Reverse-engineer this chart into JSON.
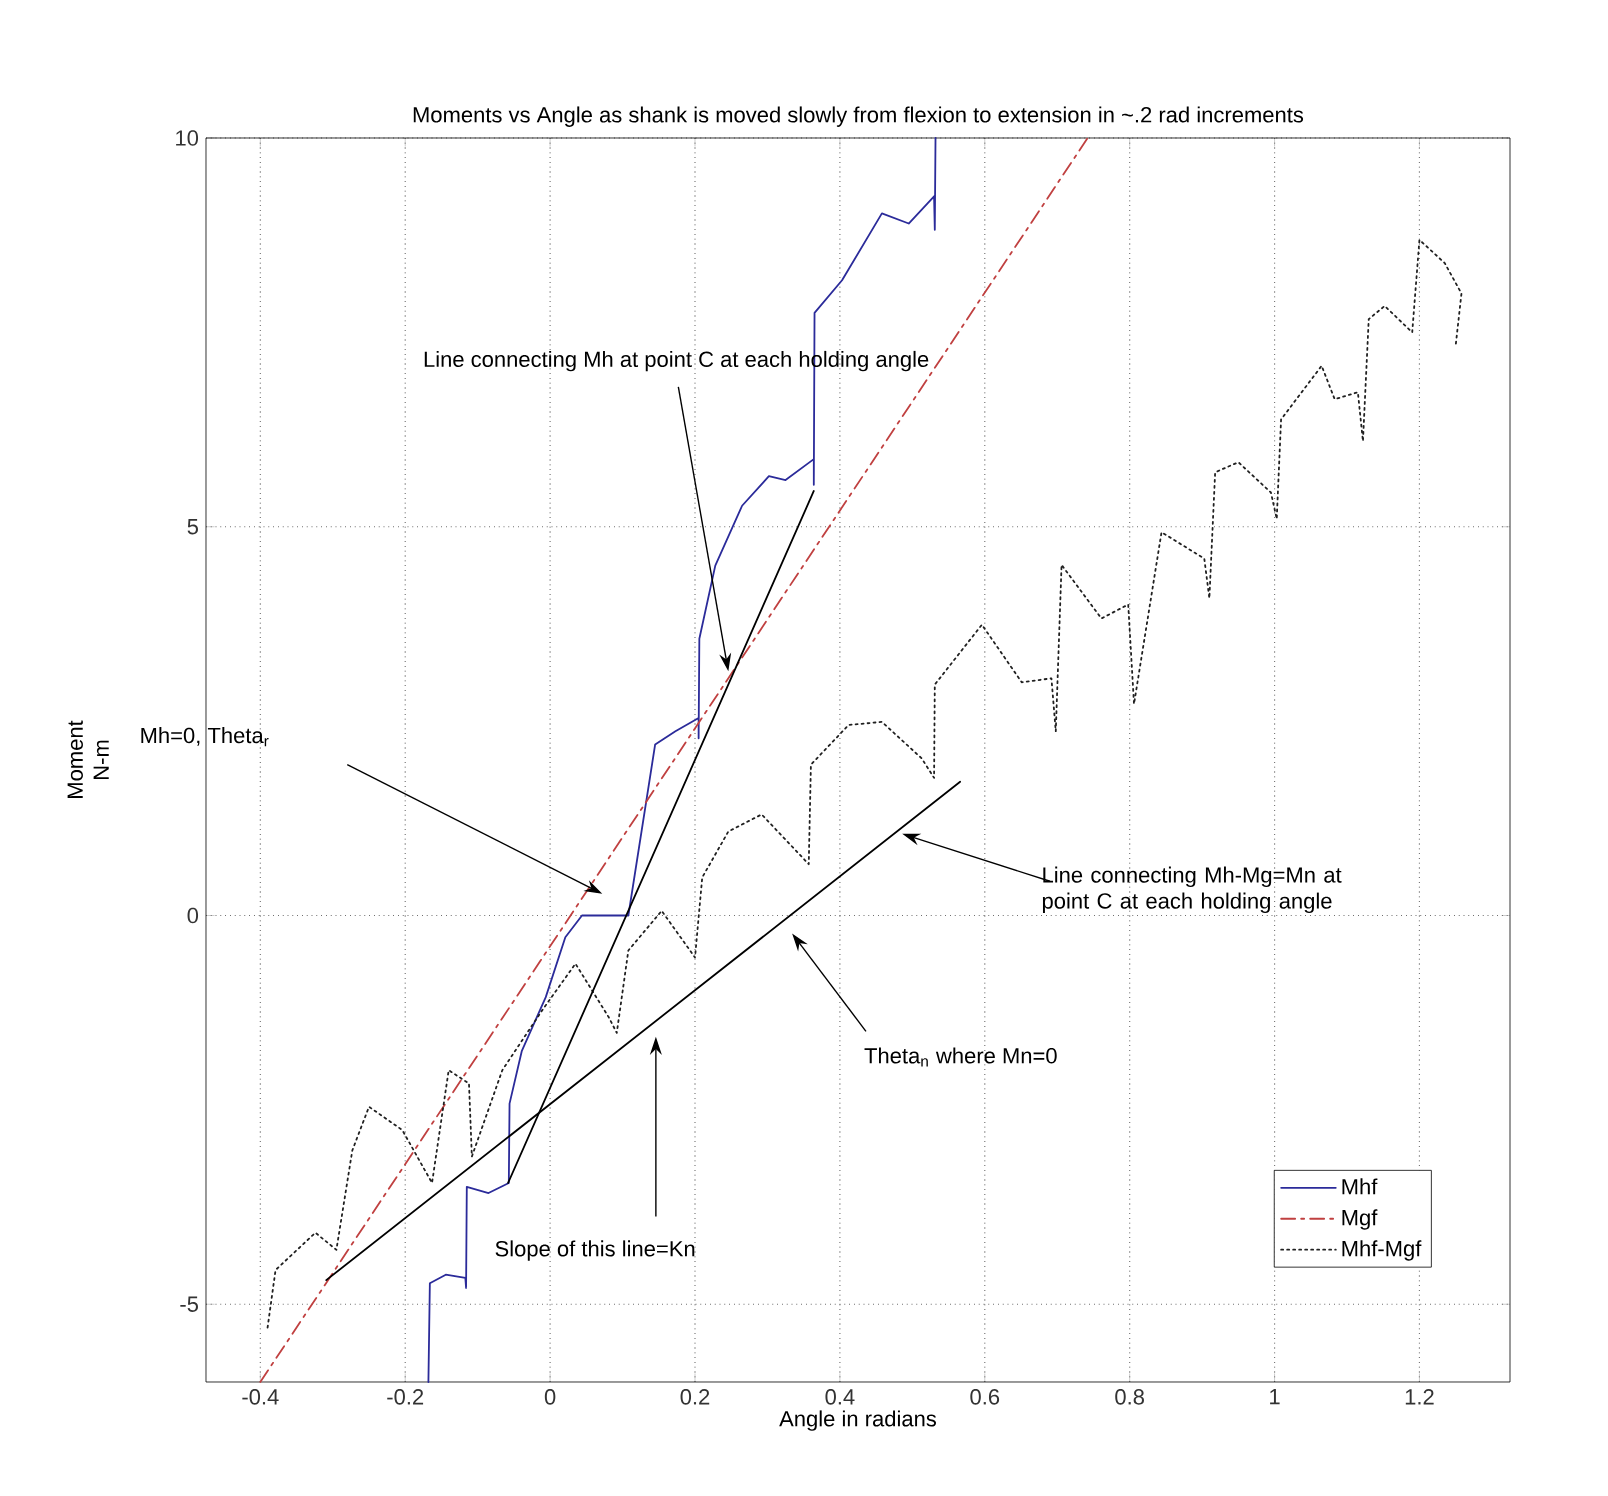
{
  "chart_data": {
    "type": "line",
    "title": "Moments vs Angle as shank is moved slowly from flexion to extension in ~.2 rad increments",
    "xlabel": "Angle in radians",
    "ylabel": "Moment N-m",
    "xlim": [
      -0.475,
      1.325
    ],
    "ylim": [
      -6,
      10
    ],
    "xticks": [
      -0.4,
      -0.2,
      0,
      0.2,
      0.4,
      0.6,
      0.8,
      1,
      1.2
    ],
    "yticks": [
      -5,
      0,
      5,
      10
    ],
    "grid": true,
    "legend": "bottom right",
    "marker": "none",
    "series": [
      {
        "name": "Mhf",
        "color": "#2b2b9a",
        "line_style": "solid",
        "x": [
          -0.168,
          -0.166,
          -0.144,
          -0.117,
          -0.116,
          -0.115,
          -0.085,
          -0.057,
          -0.056,
          -0.039,
          -0.006,
          0.021,
          0.044,
          0.108,
          0.145,
          0.173,
          0.205,
          0.205,
          0.206,
          0.228,
          0.265,
          0.302,
          0.325,
          0.364,
          0.364,
          0.365,
          0.403,
          0.458,
          0.495,
          0.53,
          0.531,
          0.532
        ],
        "values": [
          -6,
          -4.73,
          -4.62,
          -4.66,
          -4.79,
          -3.49,
          -3.57,
          -3.44,
          -2.42,
          -1.74,
          -1.05,
          -0.28,
          0,
          0,
          2.2,
          2.37,
          2.54,
          2.28,
          3.56,
          4.5,
          5.27,
          5.65,
          5.6,
          5.87,
          5.54,
          7.75,
          8.17,
          9.03,
          8.9,
          9.25,
          8.82,
          10
        ]
      },
      {
        "name": "Mgf",
        "color": "#c04040",
        "line_style": "dashdot",
        "x": [
          -0.4,
          0.742
        ],
        "values": [
          -6,
          10
        ]
      },
      {
        "name": "Mhf-Mgf",
        "color": "#202020",
        "line_style": "dotted",
        "x": [
          -0.39,
          -0.379,
          -0.324,
          -0.295,
          -0.273,
          -0.25,
          -0.204,
          -0.163,
          -0.14,
          -0.112,
          -0.108,
          -0.066,
          -0.011,
          0.035,
          0.081,
          0.092,
          0.108,
          0.154,
          0.2,
          0.21,
          0.246,
          0.292,
          0.357,
          0.36,
          0.412,
          0.458,
          0.513,
          0.53,
          0.531,
          0.596,
          0.651,
          0.692,
          0.698,
          0.706,
          0.761,
          0.798,
          0.806,
          0.844,
          0.903,
          0.91,
          0.918,
          0.95,
          0.995,
          1.003,
          1.009,
          1.065,
          1.083,
          1.115,
          1.122,
          1.13,
          1.152,
          1.19,
          1.2,
          1.235,
          1.258,
          1.25
        ],
        "values": [
          -5.3,
          -4.56,
          -4.08,
          -4.3,
          -3.02,
          -2.46,
          -2.76,
          -3.44,
          -1.99,
          -2.16,
          -3.1,
          -1.99,
          -1.22,
          -0.62,
          -1.31,
          -1.51,
          -0.45,
          0.06,
          -0.54,
          0.49,
          1.08,
          1.3,
          0.66,
          1.94,
          2.45,
          2.49,
          2.02,
          1.77,
          2.97,
          3.74,
          3.0,
          3.05,
          2.37,
          4.51,
          3.82,
          4.0,
          2.72,
          4.93,
          4.59,
          4.08,
          5.7,
          5.83,
          5.44,
          5.1,
          6.38,
          7.07,
          6.64,
          6.73,
          6.1,
          7.67,
          7.84,
          7.5,
          8.69,
          8.39,
          8.0,
          7.33
        ]
      },
      {
        "type": "line",
        "color": "#000000",
        "line_style": "solid",
        "x": [
          -0.058,
          0.364
        ],
        "values": [
          -3.44,
          5.46
        ]
      },
      {
        "type": "line",
        "color": "#000000",
        "line_style": "solid",
        "x": [
          -0.309,
          0.566
        ],
        "values": [
          -4.69,
          1.72
        ]
      }
    ],
    "annotations": [
      {
        "text": "Line connecting Mh at point C at each holding angle",
        "x": 0.246,
        "y": 3.14
      },
      "Mh=0, Theta$_{r}$",
      {
        "text": "Line connecting Mh-Mg=Mn at point C at each holding angle",
        "x": 0.486,
        "y": 1.05
      },
      "Theta$_{n}$ where Mn=0",
      "Slope of this line=Kn"
    ]
  }
}
